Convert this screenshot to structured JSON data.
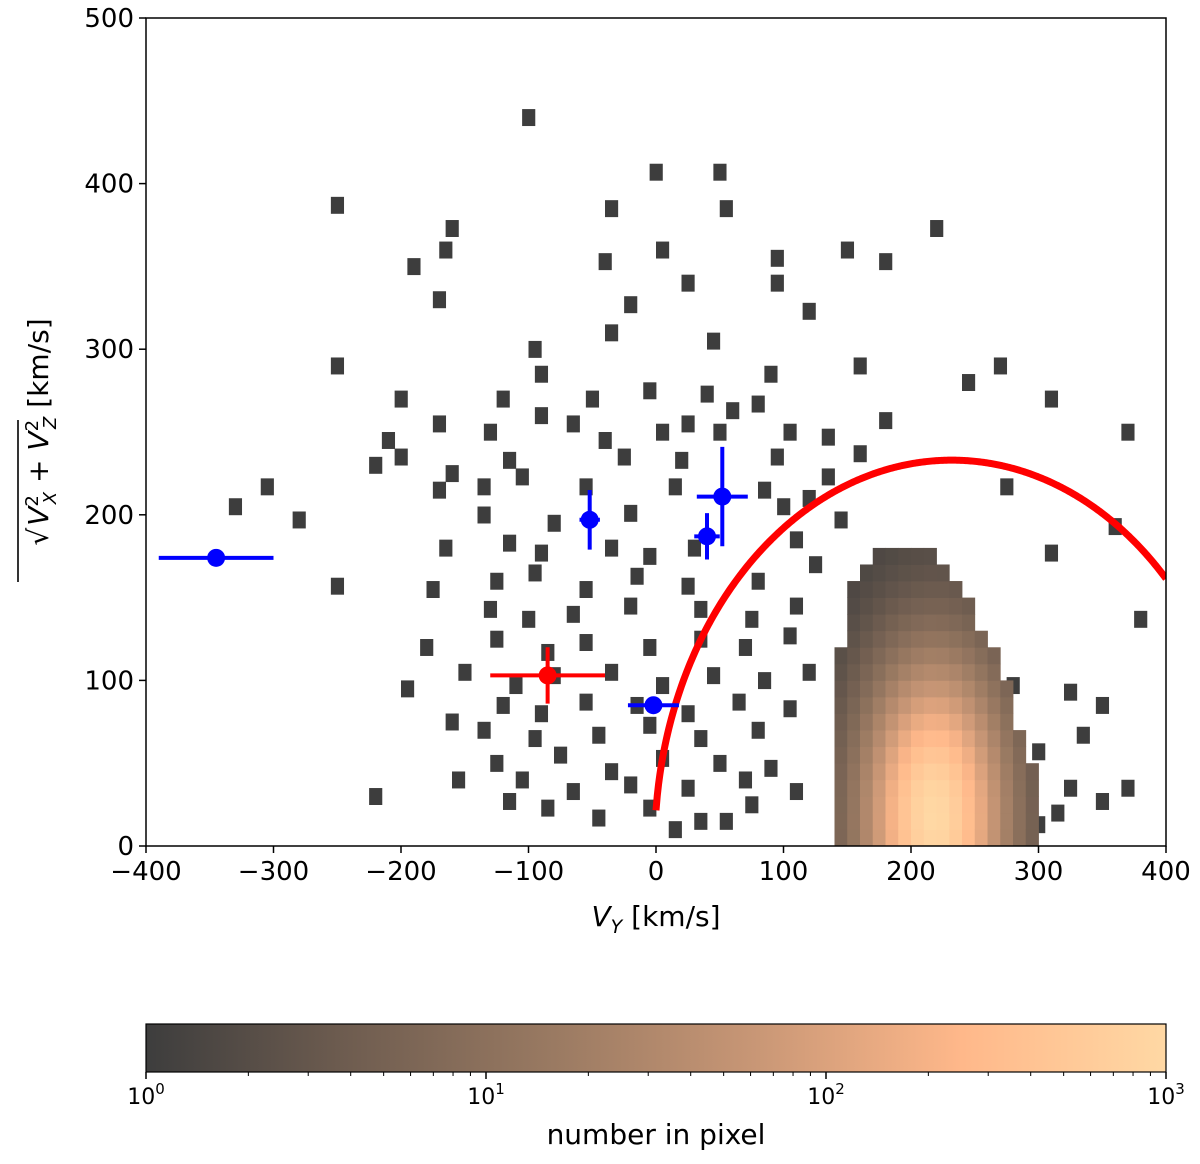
{
  "chart_data": {
    "type": "heatmap",
    "title": "",
    "xlabel": "V_Y [km/s]",
    "ylabel": "sqrt(V_X^2 + V_Z^2) [km/s]",
    "xlim": [
      -400,
      400
    ],
    "ylim": [
      0,
      500
    ],
    "xticks": [
      -400,
      -300,
      -200,
      -100,
      0,
      100,
      200,
      300,
      400
    ],
    "yticks": [
      0,
      100,
      200,
      300,
      400,
      500
    ],
    "xtick_labels": [
      "−400",
      "−300",
      "−200",
      "−100",
      "0",
      "100",
      "200",
      "300",
      "400"
    ],
    "ytick_labels": [
      "0",
      "100",
      "200",
      "300",
      "400",
      "500"
    ],
    "bin_size": [
      10,
      10
    ],
    "colorbar": {
      "label": "number in pixel",
      "scale": "log",
      "range": [
        1,
        1000
      ],
      "colors": [
        "#3d3d3d",
        "#6f5d50",
        "#9a7a62",
        "#c99776",
        "#ffb88a",
        "#ffd8a4"
      ],
      "tick_labels": [
        {
          "base": "10",
          "exp": "0"
        },
        {
          "base": "10",
          "exp": "1"
        },
        {
          "base": "10",
          "exp": "2"
        },
        {
          "base": "10",
          "exp": "3"
        }
      ]
    },
    "sparse_cells": [
      [
        -105,
        435
      ],
      [
        -5,
        402
      ],
      [
        45,
        402
      ],
      [
        -40,
        380
      ],
      [
        50,
        380
      ],
      [
        -255,
        382
      ],
      [
        -165,
        368
      ],
      [
        215,
        368
      ],
      [
        -170,
        355
      ],
      [
        -195,
        345
      ],
      [
        0,
        355
      ],
      [
        145,
        355
      ],
      [
        -45,
        348
      ],
      [
        90,
        350
      ],
      [
        175,
        348
      ],
      [
        -175,
        325
      ],
      [
        20,
        335
      ],
      [
        90,
        335
      ],
      [
        -25,
        322
      ],
      [
        115,
        318
      ],
      [
        -255,
        285
      ],
      [
        -100,
        295
      ],
      [
        -95,
        280
      ],
      [
        -40,
        305
      ],
      [
        40,
        300
      ],
      [
        85,
        280
      ],
      [
        155,
        285
      ],
      [
        265,
        285
      ],
      [
        -205,
        265
      ],
      [
        -125,
        265
      ],
      [
        -55,
        265
      ],
      [
        -10,
        270
      ],
      [
        35,
        268
      ],
      [
        55,
        258
      ],
      [
        75,
        262
      ],
      [
        240,
        275
      ],
      [
        305,
        265
      ],
      [
        -175,
        250
      ],
      [
        -95,
        255
      ],
      [
        -45,
        240
      ],
      [
        0,
        245
      ],
      [
        45,
        245
      ],
      [
        100,
        245
      ],
      [
        130,
        242
      ],
      [
        175,
        252
      ],
      [
        -215,
        240
      ],
      [
        -135,
        245
      ],
      [
        -70,
        250
      ],
      [
        20,
        250
      ],
      [
        155,
        232
      ],
      [
        365,
        245
      ],
      [
        -225,
        225
      ],
      [
        -205,
        230
      ],
      [
        -165,
        220
      ],
      [
        -120,
        228
      ],
      [
        -30,
        230
      ],
      [
        15,
        228
      ],
      [
        90,
        230
      ],
      [
        130,
        218
      ],
      [
        -310,
        212
      ],
      [
        -175,
        210
      ],
      [
        -140,
        212
      ],
      [
        -110,
        218
      ],
      [
        -60,
        212
      ],
      [
        10,
        212
      ],
      [
        80,
        210
      ],
      [
        115,
        205
      ],
      [
        -335,
        200
      ],
      [
        -285,
        192
      ],
      [
        -140,
        195
      ],
      [
        -85,
        190
      ],
      [
        -25,
        196
      ],
      [
        95,
        200
      ],
      [
        140,
        192
      ],
      [
        270,
        212
      ],
      [
        -170,
        175
      ],
      [
        -120,
        178
      ],
      [
        -95,
        172
      ],
      [
        -40,
        175
      ],
      [
        -10,
        170
      ],
      [
        25,
        175
      ],
      [
        105,
        180
      ],
      [
        355,
        188
      ],
      [
        -255,
        152
      ],
      [
        -180,
        150
      ],
      [
        -130,
        155
      ],
      [
        -100,
        160
      ],
      [
        -60,
        150
      ],
      [
        -20,
        158
      ],
      [
        20,
        152
      ],
      [
        75,
        155
      ],
      [
        120,
        165
      ],
      [
        305,
        172
      ],
      [
        -135,
        138
      ],
      [
        -105,
        132
      ],
      [
        -70,
        135
      ],
      [
        -25,
        140
      ],
      [
        30,
        138
      ],
      [
        70,
        132
      ],
      [
        105,
        140
      ],
      [
        375,
        132
      ],
      [
        -185,
        115
      ],
      [
        -130,
        120
      ],
      [
        -90,
        112
      ],
      [
        -60,
        118
      ],
      [
        -10,
        115
      ],
      [
        30,
        120
      ],
      [
        65,
        115
      ],
      [
        100,
        122
      ],
      [
        -155,
        100
      ],
      [
        -115,
        92
      ],
      [
        -85,
        98
      ],
      [
        -40,
        100
      ],
      [
        0,
        92
      ],
      [
        40,
        98
      ],
      [
        80,
        95
      ],
      [
        115,
        100
      ],
      [
        -200,
        90
      ],
      [
        -125,
        80
      ],
      [
        -95,
        75
      ],
      [
        -60,
        82
      ],
      [
        -20,
        80
      ],
      [
        20,
        75
      ],
      [
        60,
        82
      ],
      [
        100,
        78
      ],
      [
        275,
        92
      ],
      [
        320,
        88
      ],
      [
        345,
        80
      ],
      [
        -165,
        70
      ],
      [
        -140,
        65
      ],
      [
        -100,
        60
      ],
      [
        -50,
        62
      ],
      [
        -10,
        68
      ],
      [
        30,
        60
      ],
      [
        75,
        65
      ],
      [
        330,
        62
      ],
      [
        -130,
        45
      ],
      [
        -80,
        50
      ],
      [
        -40,
        40
      ],
      [
        0,
        48
      ],
      [
        45,
        45
      ],
      [
        85,
        42
      ],
      [
        295,
        52
      ],
      [
        -160,
        35
      ],
      [
        -110,
        35
      ],
      [
        -70,
        28
      ],
      [
        -25,
        32
      ],
      [
        20,
        30
      ],
      [
        65,
        35
      ],
      [
        105,
        28
      ],
      [
        320,
        30
      ],
      [
        -225,
        25
      ],
      [
        -120,
        22
      ],
      [
        -90,
        18
      ],
      [
        -50,
        12
      ],
      [
        -10,
        18
      ],
      [
        30,
        10
      ],
      [
        70,
        20
      ],
      [
        345,
        22
      ],
      [
        365,
        30
      ],
      [
        10,
        5
      ],
      [
        50,
        10
      ],
      [
        295,
        8
      ],
      [
        310,
        15
      ]
    ],
    "density_cloud": {
      "center": [
        218,
        18
      ],
      "sigma_vy": 45,
      "sigma_v": 75,
      "peak_log10_count": 3.0,
      "upper_edge_vy": [
        140,
        150,
        160,
        170,
        180,
        190,
        200,
        210,
        220,
        230,
        240,
        250,
        260,
        270,
        280,
        290,
        300
      ],
      "upper_edge_v": [
        80,
        150,
        165,
        175,
        180,
        182,
        180,
        178,
        172,
        160,
        152,
        140,
        128,
        110,
        85,
        60,
        30
      ]
    },
    "curve": {
      "name": "",
      "color": "#ff0000",
      "center_vy": 232,
      "radius": 233,
      "vy_range": [
        0,
        400
      ]
    },
    "points": [
      {
        "x": -345,
        "y": 174,
        "xerr": 45,
        "yerr": 0,
        "color": "#0000ff"
      },
      {
        "x": -52,
        "y": 197,
        "xerr": 8,
        "yerr": 18,
        "color": "#0000ff"
      },
      {
        "x": 52,
        "y": 211,
        "xerr": 20,
        "yerr": 30,
        "color": "#0000ff"
      },
      {
        "x": 40,
        "y": 187,
        "xerr": 10,
        "yerr": 14,
        "color": "#0000ff"
      },
      {
        "x": -2,
        "y": 85,
        "xerr": 20,
        "yerr": 0,
        "color": "#0000ff"
      },
      {
        "x": -85,
        "y": 103,
        "xerr": 45,
        "yerr": 17,
        "color": "#ff0000"
      }
    ]
  }
}
